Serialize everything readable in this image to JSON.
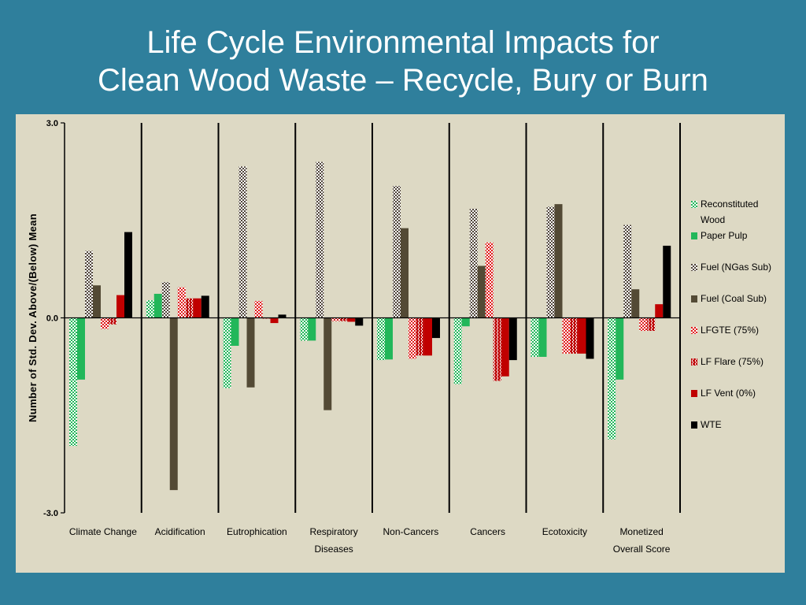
{
  "slide": {
    "title_line1": "Life Cycle Environmental Impacts for",
    "title_line2": "Clean Wood Waste – Recycle, Bury or Burn"
  },
  "chart_data": {
    "type": "bar",
    "ylabel": "Number of Std. Dev. Above/(Below) Mean",
    "ylim": [
      -3.0,
      3.0
    ],
    "yticks": [
      "3.0",
      "0.0",
      "-3.0"
    ],
    "ytick_values": [
      3.0,
      0.0,
      -3.0
    ],
    "categories": [
      "Climate Change",
      "Acidification",
      "Eutrophication",
      "Respiratory Diseases",
      "Non-Cancers",
      "Cancers",
      "Ecotoxicity",
      "Monetized Overall Score"
    ],
    "legend_position": "right",
    "series": [
      {
        "name": "Reconstituted Wood",
        "color": "#22b75a",
        "pattern": "checker",
        "values": [
          -1.97,
          0.27,
          -1.08,
          -0.35,
          -0.65,
          -1.02,
          -0.6,
          -1.87
        ]
      },
      {
        "name": "Paper Pulp",
        "color": "#22b75a",
        "pattern": "solid",
        "values": [
          -0.95,
          0.37,
          -0.43,
          -0.35,
          -0.64,
          -0.13,
          -0.6,
          -0.95
        ]
      },
      {
        "name": "Fuel (NGas Sub)",
        "color": "#50453a",
        "pattern": "checker",
        "values": [
          1.03,
          0.55,
          2.33,
          2.4,
          2.03,
          1.68,
          1.71,
          1.43
        ]
      },
      {
        "name": "Fuel (Coal Sub)",
        "color": "#534a35",
        "pattern": "solid",
        "values": [
          0.5,
          -2.65,
          -1.07,
          -1.42,
          1.38,
          0.8,
          1.75,
          0.44
        ]
      },
      {
        "name": "LFGTE (75%)",
        "color": "#e01818",
        "pattern": "checker",
        "values": [
          -0.17,
          0.47,
          0.26,
          -0.05,
          -0.63,
          1.16,
          -0.55,
          -0.2
        ]
      },
      {
        "name": "LF Flare (75%)",
        "color": "#c01010",
        "pattern": "checker2",
        "values": [
          -0.1,
          0.3,
          0.0,
          -0.05,
          -0.58,
          -0.97,
          -0.55,
          -0.2
        ]
      },
      {
        "name": "LF Vent (0%)",
        "color": "#c00000",
        "pattern": "solid",
        "values": [
          0.35,
          0.3,
          -0.08,
          -0.06,
          -0.58,
          -0.9,
          -0.55,
          0.21
        ]
      },
      {
        "name": "WTE",
        "color": "#000000",
        "pattern": "solid",
        "values": [
          1.32,
          0.34,
          0.05,
          -0.12,
          -0.31,
          -0.65,
          -0.63,
          1.11
        ]
      }
    ]
  }
}
